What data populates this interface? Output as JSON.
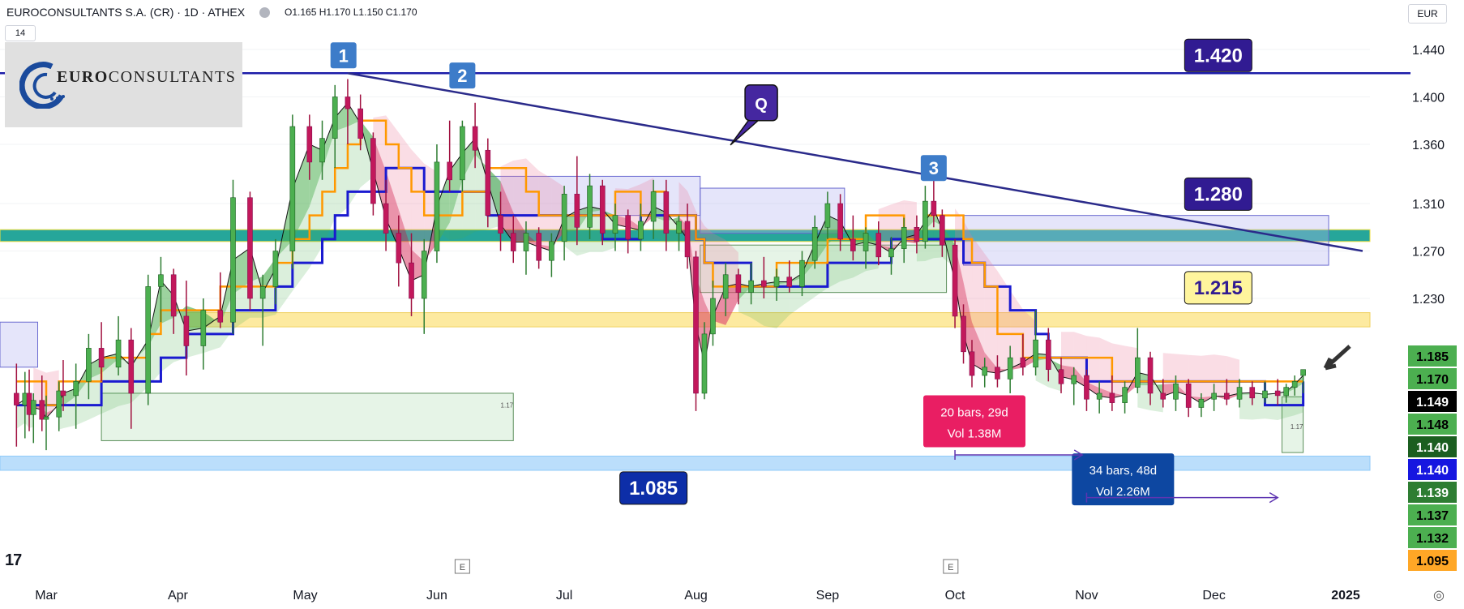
{
  "header": {
    "symbol": "EUROCONSULTANTS S.A. (CR) · 1D · ATHEX",
    "ohlc": "O1.165 H1.170 L1.150 C1.170",
    "interval_badge": "14",
    "currency": "EUR"
  },
  "logo": {
    "prefix": "EURO",
    "suffix": "CONSULTANTS"
  },
  "tv_logo": "17",
  "chart_data": {
    "type": "candlestick",
    "title": "",
    "ylim": [
      1.06,
      1.455
    ],
    "y_ticks": [
      "1.440",
      "1.400",
      "1.360",
      "1.310",
      "1.270",
      "1.230"
    ],
    "x_ticks": [
      {
        "label": "Mar",
        "day": 0
      },
      {
        "label": "Apr",
        "day": 31
      },
      {
        "label": "May",
        "day": 61
      },
      {
        "label": "Jun",
        "day": 92
      },
      {
        "label": "Jul",
        "day": 122
      },
      {
        "label": "Aug",
        "day": 153
      },
      {
        "label": "Sep",
        "day": 184
      },
      {
        "label": "Oct",
        "day": 214
      },
      {
        "label": "Nov",
        "day": 245
      },
      {
        "label": "Dec",
        "day": 275
      },
      {
        "label": "2025",
        "day": 306
      }
    ],
    "candles": [
      {
        "day": -7,
        "o": 1.15,
        "h": 1.175,
        "l": 1.105,
        "c": 1.14
      },
      {
        "day": -5,
        "o": 1.14,
        "h": 1.168,
        "l": 1.112,
        "c": 1.15
      },
      {
        "day": -4,
        "o": 1.15,
        "h": 1.17,
        "l": 1.118,
        "c": 1.132
      },
      {
        "day": -3,
        "o": 1.132,
        "h": 1.15,
        "l": 1.108,
        "c": 1.144
      },
      {
        "day": -1,
        "o": 1.144,
        "h": 1.165,
        "l": 1.118,
        "c": 1.128
      },
      {
        "day": 0,
        "o": 1.128,
        "h": 1.148,
        "l": 1.102,
        "c": 1.13
      },
      {
        "day": 3,
        "o": 1.13,
        "h": 1.16,
        "l": 1.118,
        "c": 1.152
      },
      {
        "day": 4,
        "o": 1.152,
        "h": 1.178,
        "l": 1.135,
        "c": 1.148
      },
      {
        "day": 7,
        "o": 1.148,
        "h": 1.175,
        "l": 1.12,
        "c": 1.16
      },
      {
        "day": 10,
        "o": 1.16,
        "h": 1.2,
        "l": 1.145,
        "c": 1.188
      },
      {
        "day": 13,
        "o": 1.188,
        "h": 1.21,
        "l": 1.16,
        "c": 1.172
      },
      {
        "day": 17,
        "o": 1.172,
        "h": 1.215,
        "l": 1.165,
        "c": 1.195
      },
      {
        "day": 20,
        "o": 1.195,
        "h": 1.205,
        "l": 1.12,
        "c": 1.15
      },
      {
        "day": 24,
        "o": 1.15,
        "h": 1.25,
        "l": 1.14,
        "c": 1.24
      },
      {
        "day": 27,
        "o": 1.24,
        "h": 1.265,
        "l": 1.21,
        "c": 1.25
      },
      {
        "day": 30,
        "o": 1.25,
        "h": 1.255,
        "l": 1.2,
        "c": 1.215
      },
      {
        "day": 33,
        "o": 1.215,
        "h": 1.245,
        "l": 1.165,
        "c": 1.19
      },
      {
        "day": 37,
        "o": 1.19,
        "h": 1.23,
        "l": 1.17,
        "c": 1.22
      },
      {
        "day": 41,
        "o": 1.22,
        "h": 1.252,
        "l": 1.205,
        "c": 1.21
      },
      {
        "day": 44,
        "o": 1.21,
        "h": 1.33,
        "l": 1.2,
        "c": 1.315
      },
      {
        "day": 48,
        "o": 1.315,
        "h": 1.32,
        "l": 1.22,
        "c": 1.23
      },
      {
        "day": 51,
        "o": 1.23,
        "h": 1.25,
        "l": 1.19,
        "c": 1.24
      },
      {
        "day": 54,
        "o": 1.24,
        "h": 1.28,
        "l": 1.225,
        "c": 1.27
      },
      {
        "day": 58,
        "o": 1.27,
        "h": 1.385,
        "l": 1.255,
        "c": 1.375
      },
      {
        "day": 62,
        "o": 1.375,
        "h": 1.385,
        "l": 1.33,
        "c": 1.345
      },
      {
        "day": 65,
        "o": 1.345,
        "h": 1.38,
        "l": 1.33,
        "c": 1.365
      },
      {
        "day": 68,
        "o": 1.365,
        "h": 1.41,
        "l": 1.34,
        "c": 1.4
      },
      {
        "day": 71,
        "o": 1.4,
        "h": 1.415,
        "l": 1.36,
        "c": 1.39
      },
      {
        "day": 74,
        "o": 1.39,
        "h": 1.402,
        "l": 1.355,
        "c": 1.365
      },
      {
        "day": 77,
        "o": 1.365,
        "h": 1.37,
        "l": 1.3,
        "c": 1.31
      },
      {
        "day": 80,
        "o": 1.31,
        "h": 1.33,
        "l": 1.27,
        "c": 1.285
      },
      {
        "day": 83,
        "o": 1.285,
        "h": 1.3,
        "l": 1.24,
        "c": 1.26
      },
      {
        "day": 86,
        "o": 1.26,
        "h": 1.285,
        "l": 1.215,
        "c": 1.23
      },
      {
        "day": 89,
        "o": 1.23,
        "h": 1.28,
        "l": 1.2,
        "c": 1.27
      },
      {
        "day": 92,
        "o": 1.27,
        "h": 1.36,
        "l": 1.26,
        "c": 1.345
      },
      {
        "day": 95,
        "o": 1.345,
        "h": 1.38,
        "l": 1.32,
        "c": 1.33
      },
      {
        "day": 98,
        "o": 1.33,
        "h": 1.38,
        "l": 1.32,
        "c": 1.375
      },
      {
        "day": 101,
        "o": 1.375,
        "h": 1.395,
        "l": 1.34,
        "c": 1.355
      },
      {
        "day": 104,
        "o": 1.355,
        "h": 1.365,
        "l": 1.29,
        "c": 1.3
      },
      {
        "day": 107,
        "o": 1.3,
        "h": 1.32,
        "l": 1.27,
        "c": 1.285
      },
      {
        "day": 110,
        "o": 1.285,
        "h": 1.3,
        "l": 1.26,
        "c": 1.27
      },
      {
        "day": 113,
        "o": 1.27,
        "h": 1.295,
        "l": 1.25,
        "c": 1.285
      },
      {
        "day": 116,
        "o": 1.285,
        "h": 1.29,
        "l": 1.255,
        "c": 1.262
      },
      {
        "day": 119,
        "o": 1.262,
        "h": 1.285,
        "l": 1.248,
        "c": 1.278
      },
      {
        "day": 122,
        "o": 1.278,
        "h": 1.325,
        "l": 1.262,
        "c": 1.318
      },
      {
        "day": 125,
        "o": 1.318,
        "h": 1.35,
        "l": 1.275,
        "c": 1.29
      },
      {
        "day": 128,
        "o": 1.29,
        "h": 1.335,
        "l": 1.28,
        "c": 1.325
      },
      {
        "day": 131,
        "o": 1.325,
        "h": 1.33,
        "l": 1.275,
        "c": 1.285
      },
      {
        "day": 134,
        "o": 1.285,
        "h": 1.31,
        "l": 1.27,
        "c": 1.3
      },
      {
        "day": 137,
        "o": 1.3,
        "h": 1.305,
        "l": 1.268,
        "c": 1.28
      },
      {
        "day": 140,
        "o": 1.28,
        "h": 1.31,
        "l": 1.27,
        "c": 1.295
      },
      {
        "day": 143,
        "o": 1.295,
        "h": 1.33,
        "l": 1.28,
        "c": 1.32
      },
      {
        "day": 146,
        "o": 1.32,
        "h": 1.33,
        "l": 1.27,
        "c": 1.285
      },
      {
        "day": 149,
        "o": 1.285,
        "h": 1.3,
        "l": 1.27,
        "c": 1.295
      },
      {
        "day": 151,
        "o": 1.295,
        "h": 1.31,
        "l": 1.255,
        "c": 1.265
      },
      {
        "day": 153,
        "o": 1.265,
        "h": 1.27,
        "l": 1.135,
        "c": 1.15
      },
      {
        "day": 155,
        "o": 1.15,
        "h": 1.21,
        "l": 1.145,
        "c": 1.2
      },
      {
        "day": 157,
        "o": 1.2,
        "h": 1.245,
        "l": 1.19,
        "c": 1.23
      },
      {
        "day": 160,
        "o": 1.23,
        "h": 1.26,
        "l": 1.215,
        "c": 1.25
      },
      {
        "day": 163,
        "o": 1.25,
        "h": 1.255,
        "l": 1.225,
        "c": 1.235
      },
      {
        "day": 166,
        "o": 1.235,
        "h": 1.26,
        "l": 1.225,
        "c": 1.245
      },
      {
        "day": 169,
        "o": 1.245,
        "h": 1.265,
        "l": 1.23,
        "c": 1.24
      },
      {
        "day": 172,
        "o": 1.24,
        "h": 1.255,
        "l": 1.228,
        "c": 1.248
      },
      {
        "day": 175,
        "o": 1.248,
        "h": 1.262,
        "l": 1.235,
        "c": 1.24
      },
      {
        "day": 178,
        "o": 1.24,
        "h": 1.27,
        "l": 1.232,
        "c": 1.262
      },
      {
        "day": 181,
        "o": 1.262,
        "h": 1.3,
        "l": 1.255,
        "c": 1.29
      },
      {
        "day": 184,
        "o": 1.29,
        "h": 1.32,
        "l": 1.28,
        "c": 1.31
      },
      {
        "day": 187,
        "o": 1.31,
        "h": 1.318,
        "l": 1.27,
        "c": 1.28
      },
      {
        "day": 190,
        "o": 1.28,
        "h": 1.3,
        "l": 1.262,
        "c": 1.27
      },
      {
        "day": 193,
        "o": 1.27,
        "h": 1.29,
        "l": 1.255,
        "c": 1.285
      },
      {
        "day": 196,
        "o": 1.285,
        "h": 1.295,
        "l": 1.258,
        "c": 1.265
      },
      {
        "day": 199,
        "o": 1.265,
        "h": 1.282,
        "l": 1.25,
        "c": 1.272
      },
      {
        "day": 202,
        "o": 1.272,
        "h": 1.298,
        "l": 1.26,
        "c": 1.29
      },
      {
        "day": 205,
        "o": 1.29,
        "h": 1.3,
        "l": 1.268,
        "c": 1.278
      },
      {
        "day": 207,
        "o": 1.278,
        "h": 1.325,
        "l": 1.272,
        "c": 1.312
      },
      {
        "day": 209,
        "o": 1.312,
        "h": 1.335,
        "l": 1.29,
        "c": 1.3
      },
      {
        "day": 211,
        "o": 1.3,
        "h": 1.305,
        "l": 1.265,
        "c": 1.275
      },
      {
        "day": 214,
        "o": 1.275,
        "h": 1.28,
        "l": 1.205,
        "c": 1.215
      },
      {
        "day": 216,
        "o": 1.215,
        "h": 1.225,
        "l": 1.175,
        "c": 1.185
      },
      {
        "day": 218,
        "o": 1.185,
        "h": 1.195,
        "l": 1.155,
        "c": 1.165
      },
      {
        "day": 221,
        "o": 1.165,
        "h": 1.18,
        "l": 1.155,
        "c": 1.172
      },
      {
        "day": 224,
        "o": 1.172,
        "h": 1.182,
        "l": 1.155,
        "c": 1.162
      },
      {
        "day": 227,
        "o": 1.162,
        "h": 1.19,
        "l": 1.15,
        "c": 1.18
      },
      {
        "day": 230,
        "o": 1.18,
        "h": 1.2,
        "l": 1.165,
        "c": 1.172
      },
      {
        "day": 233,
        "o": 1.172,
        "h": 1.22,
        "l": 1.165,
        "c": 1.195
      },
      {
        "day": 236,
        "o": 1.195,
        "h": 1.205,
        "l": 1.16,
        "c": 1.17
      },
      {
        "day": 239,
        "o": 1.17,
        "h": 1.18,
        "l": 1.15,
        "c": 1.158
      },
      {
        "day": 242,
        "o": 1.158,
        "h": 1.172,
        "l": 1.14,
        "c": 1.165
      },
      {
        "day": 245,
        "o": 1.165,
        "h": 1.17,
        "l": 1.135,
        "c": 1.145
      },
      {
        "day": 248,
        "o": 1.145,
        "h": 1.16,
        "l": 1.133,
        "c": 1.15
      },
      {
        "day": 251,
        "o": 1.15,
        "h": 1.165,
        "l": 1.135,
        "c": 1.142
      },
      {
        "day": 254,
        "o": 1.142,
        "h": 1.16,
        "l": 1.133,
        "c": 1.155
      },
      {
        "day": 257,
        "o": 1.155,
        "h": 1.205,
        "l": 1.15,
        "c": 1.18
      },
      {
        "day": 260,
        "o": 1.18,
        "h": 1.185,
        "l": 1.14,
        "c": 1.15
      },
      {
        "day": 263,
        "o": 1.15,
        "h": 1.162,
        "l": 1.138,
        "c": 1.145
      },
      {
        "day": 266,
        "o": 1.145,
        "h": 1.165,
        "l": 1.135,
        "c": 1.158
      },
      {
        "day": 269,
        "o": 1.158,
        "h": 1.162,
        "l": 1.13,
        "c": 1.138
      },
      {
        "day": 272,
        "o": 1.138,
        "h": 1.15,
        "l": 1.13,
        "c": 1.145
      },
      {
        "day": 275,
        "o": 1.145,
        "h": 1.158,
        "l": 1.135,
        "c": 1.15
      },
      {
        "day": 278,
        "o": 1.15,
        "h": 1.162,
        "l": 1.14,
        "c": 1.145
      },
      {
        "day": 281,
        "o": 1.145,
        "h": 1.162,
        "l": 1.138,
        "c": 1.155
      },
      {
        "day": 284,
        "o": 1.155,
        "h": 1.16,
        "l": 1.14,
        "c": 1.146
      },
      {
        "day": 287,
        "o": 1.146,
        "h": 1.16,
        "l": 1.142,
        "c": 1.152
      },
      {
        "day": 290,
        "o": 1.152,
        "h": 1.162,
        "l": 1.14,
        "c": 1.148
      },
      {
        "day": 292,
        "o": 1.148,
        "h": 1.158,
        "l": 1.142,
        "c": 1.155
      },
      {
        "day": 294,
        "o": 1.155,
        "h": 1.165,
        "l": 1.148,
        "c": 1.16
      },
      {
        "day": 296,
        "o": 1.165,
        "h": 1.17,
        "l": 1.15,
        "c": 1.17
      }
    ],
    "trendline": {
      "from": {
        "day": 71,
        "price": 1.42
      },
      "to": {
        "day": 310,
        "price": 1.27
      }
    },
    "hlines": [
      {
        "price": 1.42,
        "color": "#1b1ba8",
        "name": "resistance-1420"
      }
    ],
    "zones": [
      {
        "name": "teal-zone",
        "from_day": -30,
        "to_day": 312,
        "top": 1.288,
        "bottom": 1.278,
        "fill": "#26a69a",
        "stroke": "#f0e040"
      },
      {
        "name": "yellow-zone",
        "from_day": 33,
        "to_day": 312,
        "top": 1.218,
        "bottom": 1.206,
        "fill": "#fdeaa0",
        "stroke": "#f0d060"
      },
      {
        "name": "blue-zone",
        "from_day": -30,
        "to_day": 312,
        "top": 1.097,
        "bottom": 1.085,
        "fill": "#bbdefb",
        "stroke": "#90caf9"
      },
      {
        "name": "box-left",
        "from_day": -30,
        "to_day": -2,
        "top": 1.21,
        "bottom": 1.172,
        "fill": "rgba(180,180,240,0.35)",
        "stroke": "#6a6ad0"
      },
      {
        "name": "box-jun",
        "from_day": 104,
        "to_day": 154,
        "top": 1.333,
        "bottom": 1.3,
        "fill": "rgba(180,180,240,0.35)",
        "stroke": "#6a6ad0"
      },
      {
        "name": "box-aug",
        "from_day": 154,
        "to_day": 188,
        "top": 1.323,
        "bottom": 1.285,
        "fill": "rgba(180,180,240,0.35)",
        "stroke": "#6a6ad0"
      },
      {
        "name": "box-oct",
        "from_day": 216,
        "to_day": 302,
        "top": 1.3,
        "bottom": 1.258,
        "fill": "rgba(180,180,240,0.35)",
        "stroke": "#6a6ad0"
      },
      {
        "name": "green-box-mar",
        "from_day": 13,
        "to_day": 110,
        "top": 1.15,
        "bottom": 1.11,
        "fill": "rgba(200,230,201,0.45)",
        "stroke": "#5b8f5b"
      },
      {
        "name": "green-box-aug",
        "from_day": 154,
        "to_day": 212,
        "top": 1.275,
        "bottom": 1.235,
        "fill": "rgba(200,230,201,0.45)",
        "stroke": "#5b8f5b"
      },
      {
        "name": "green-box-dec",
        "from_day": 291,
        "to_day": 296,
        "top": 1.147,
        "bottom": 1.1,
        "fill": "rgba(200,230,201,0.45)",
        "stroke": "#5b8f5b"
      }
    ],
    "small_box_labels": [
      {
        "text": "1.17",
        "day": 107,
        "price": 1.138
      },
      {
        "text": "1.17",
        "day": 293,
        "price": 1.12
      }
    ],
    "wave_labels": [
      {
        "text": "1",
        "day": 70,
        "price": 1.435
      },
      {
        "text": "2",
        "day": 98,
        "price": 1.418
      },
      {
        "text": "3",
        "day": 209,
        "price": 1.34
      }
    ],
    "callout": {
      "text": "Q",
      "day": 168,
      "price": 1.395
    },
    "price_tags": [
      {
        "text": "1.420",
        "day": 276,
        "price": 1.435,
        "bg": "#311b92",
        "fg": "#ffffff",
        "name": "tag-1420"
      },
      {
        "text": "1.280",
        "day": 276,
        "price": 1.318,
        "bg": "#311b92",
        "fg": "#ffffff",
        "name": "tag-1280"
      },
      {
        "text": "1.215",
        "day": 276,
        "price": 1.239,
        "bg": "#fff59d",
        "fg": "#311b92",
        "name": "tag-1215"
      },
      {
        "text": "1.085",
        "day": 143,
        "price": 1.07,
        "bg": "#0d2ea8",
        "fg": "#ffffff",
        "name": "tag-1085"
      }
    ],
    "measure_boxes": [
      {
        "name": "measure-oct",
        "lines": [
          "20 bars, 29d",
          "Vol 1.38M"
        ],
        "day": 218,
        "price": 1.125,
        "bg": "#e91e63"
      },
      {
        "name": "measure-nov",
        "lines": [
          "34 bars, 48d",
          "Vol 2.26M"
        ],
        "day": 253,
        "price": 1.076,
        "bg": "#0d47a1"
      }
    ],
    "measure_arrows": [
      {
        "from_day": 214,
        "to_day": 244,
        "price": 1.098,
        "color": "#5e35b1"
      },
      {
        "from_day": 245,
        "to_day": 290,
        "price": 1.062,
        "color": "#5e35b1"
      }
    ],
    "earnings": [
      {
        "text": "E",
        "day": 98
      },
      {
        "text": "E",
        "day": 213
      }
    ],
    "axis_labels": [
      {
        "text": "1.185",
        "price": 1.185,
        "bg": "#4caf50",
        "fg": "#000000"
      },
      {
        "text": "1.170",
        "price": 1.17,
        "bg": "#4caf50",
        "fg": "#000000"
      },
      {
        "text": "1.149",
        "price": 1.149,
        "bg": "#000000",
        "fg": "#ffffff"
      },
      {
        "text": "1.148",
        "price": 1.1465,
        "bg": "#4caf50",
        "fg": "#000000"
      },
      {
        "text": "1.140",
        "price": 1.1425,
        "bg": "#1b5e20",
        "fg": "#ffffff"
      },
      {
        "text": "1.140",
        "price": 1.1385,
        "bg": "#1616e0",
        "fg": "#ffffff"
      },
      {
        "text": "1.139",
        "price": 1.1345,
        "bg": "#2e7d32",
        "fg": "#ffffff"
      },
      {
        "text": "1.137",
        "price": 1.1305,
        "bg": "#4caf50",
        "fg": "#000000"
      },
      {
        "text": "1.132",
        "price": 1.1265,
        "bg": "#4caf50",
        "fg": "#000000"
      },
      {
        "text": "1.095",
        "price": 1.1225,
        "bg": "#ffa726",
        "fg": "#000000"
      }
    ]
  }
}
